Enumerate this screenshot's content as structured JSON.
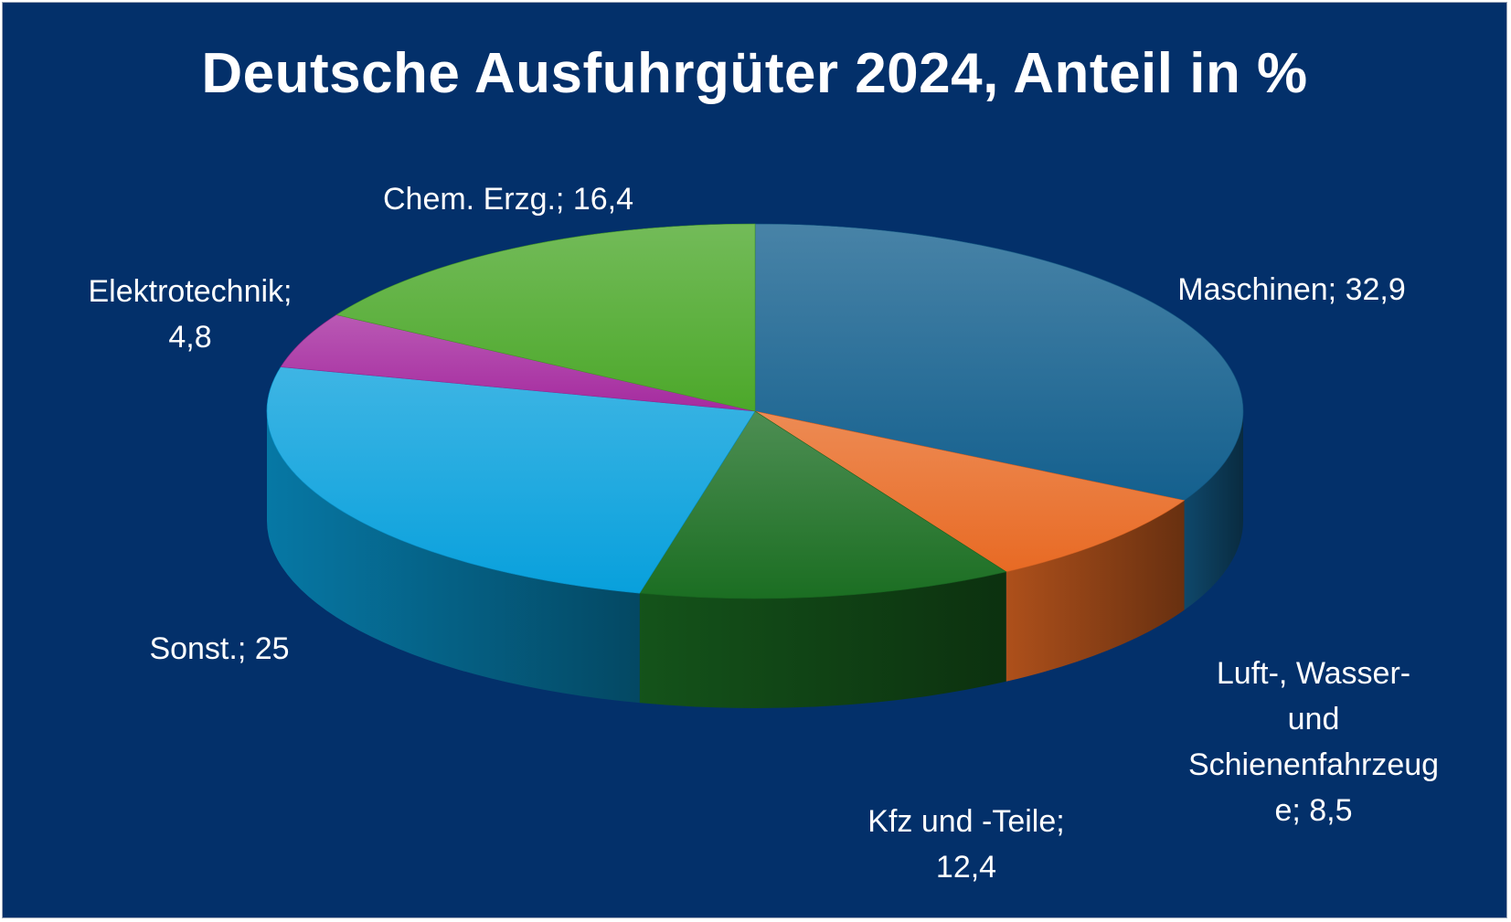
{
  "chart_data": {
    "type": "pie",
    "title": "Deutsche Ausfuhrgüter 2024, Anteil in %",
    "slices": [
      {
        "label": "Maschinen",
        "value": 32.9,
        "display_value": "32,9",
        "color": "#14608e",
        "label_lines": [
          "Maschinen; 32,9"
        ]
      },
      {
        "label": "Luft-, Wasser- und Schienenfahrzeuge",
        "value": 8.5,
        "display_value": "8,5",
        "color": "#e86a24",
        "label_lines": [
          "Luft-, Wasser-",
          "und",
          "Schienenfahrzeug",
          "e; 8,5"
        ]
      },
      {
        "label": "Kfz und -Teile",
        "value": 12.4,
        "display_value": "12,4",
        "color": "#1b6e22",
        "label_lines": [
          "Kfz und -Teile;",
          "12,4"
        ]
      },
      {
        "label": "Sonst.",
        "value": 25,
        "display_value": "25",
        "color": "#08a0dc",
        "label_lines": [
          "Sonst.; 25"
        ]
      },
      {
        "label": "Elektrotechnik",
        "value": 4.8,
        "display_value": "4,8",
        "color": "#a52a9f",
        "label_lines": [
          "Elektrotechnik;",
          "4,8"
        ]
      },
      {
        "label": "Chem. Erzg.",
        "value": 16.4,
        "display_value": "16,4",
        "color": "#4ca82a",
        "label_lines": [
          "Chem. Erzg.; 16,4"
        ]
      }
    ],
    "legend": "none",
    "style": "3d-pie"
  }
}
